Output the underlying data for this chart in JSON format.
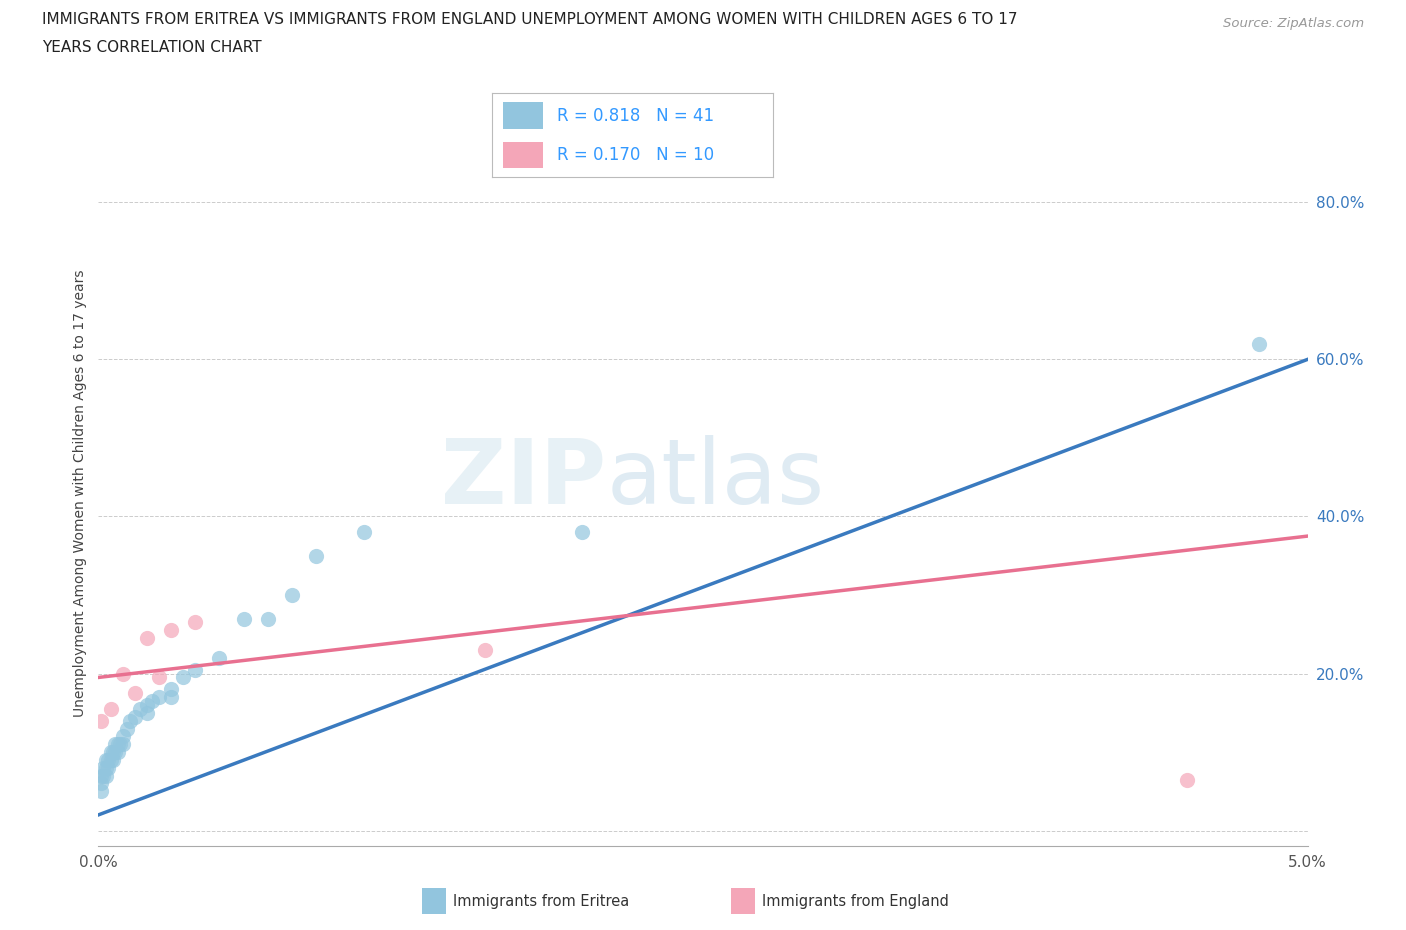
{
  "title_line1": "IMMIGRANTS FROM ERITREA VS IMMIGRANTS FROM ENGLAND UNEMPLOYMENT AMONG WOMEN WITH CHILDREN AGES 6 TO 17",
  "title_line2": "YEARS CORRELATION CHART",
  "source": "Source: ZipAtlas.com",
  "ylabel": "Unemployment Among Women with Children Ages 6 to 17 years",
  "ytick_vals": [
    0.0,
    0.2,
    0.4,
    0.6,
    0.8
  ],
  "ytick_labels": [
    "",
    "20.0%",
    "40.0%",
    "60.0%",
    "80.0%"
  ],
  "xtick_vals": [
    0.0,
    0.01,
    0.02,
    0.03,
    0.04,
    0.05
  ],
  "xtick_labels": [
    "0.0%",
    "",
    "",
    "",
    "",
    "5.0%"
  ],
  "xlim": [
    0.0,
    0.05
  ],
  "ylim": [
    -0.02,
    0.88
  ],
  "legend_eritrea_R": "0.818",
  "legend_eritrea_N": "41",
  "legend_england_R": "0.170",
  "legend_england_N": "10",
  "color_eritrea_scatter": "#92c5de",
  "color_england_scatter": "#f4a6b8",
  "color_line_eritrea": "#3a7abf",
  "color_line_england": "#e87090",
  "color_legend_text": "#3399ff",
  "watermark_text": "ZIPatlas",
  "eritrea_x": [
    0.0001,
    0.0001,
    0.0001,
    0.0002,
    0.0002,
    0.0003,
    0.0003,
    0.0003,
    0.0004,
    0.0004,
    0.0005,
    0.0005,
    0.0006,
    0.0006,
    0.0007,
    0.0007,
    0.0008,
    0.0008,
    0.0009,
    0.001,
    0.001,
    0.0012,
    0.0013,
    0.0015,
    0.0017,
    0.002,
    0.002,
    0.0022,
    0.0025,
    0.003,
    0.003,
    0.0035,
    0.004,
    0.005,
    0.006,
    0.007,
    0.008,
    0.009,
    0.011,
    0.02,
    0.048
  ],
  "eritrea_y": [
    0.05,
    0.06,
    0.07,
    0.07,
    0.08,
    0.07,
    0.08,
    0.09,
    0.08,
    0.09,
    0.09,
    0.1,
    0.09,
    0.1,
    0.1,
    0.11,
    0.1,
    0.11,
    0.11,
    0.11,
    0.12,
    0.13,
    0.14,
    0.145,
    0.155,
    0.15,
    0.16,
    0.165,
    0.17,
    0.17,
    0.18,
    0.195,
    0.205,
    0.22,
    0.27,
    0.27,
    0.3,
    0.35,
    0.38,
    0.38,
    0.62
  ],
  "england_x": [
    0.0001,
    0.0005,
    0.001,
    0.0015,
    0.002,
    0.0025,
    0.003,
    0.004,
    0.016,
    0.045
  ],
  "england_y": [
    0.14,
    0.155,
    0.2,
    0.175,
    0.245,
    0.195,
    0.255,
    0.265,
    0.23,
    0.065
  ],
  "eritrea_line_x": [
    0.0,
    0.05
  ],
  "eritrea_line_y": [
    0.02,
    0.6
  ],
  "england_line_x": [
    0.0,
    0.05
  ],
  "england_line_y": [
    0.195,
    0.375
  ]
}
